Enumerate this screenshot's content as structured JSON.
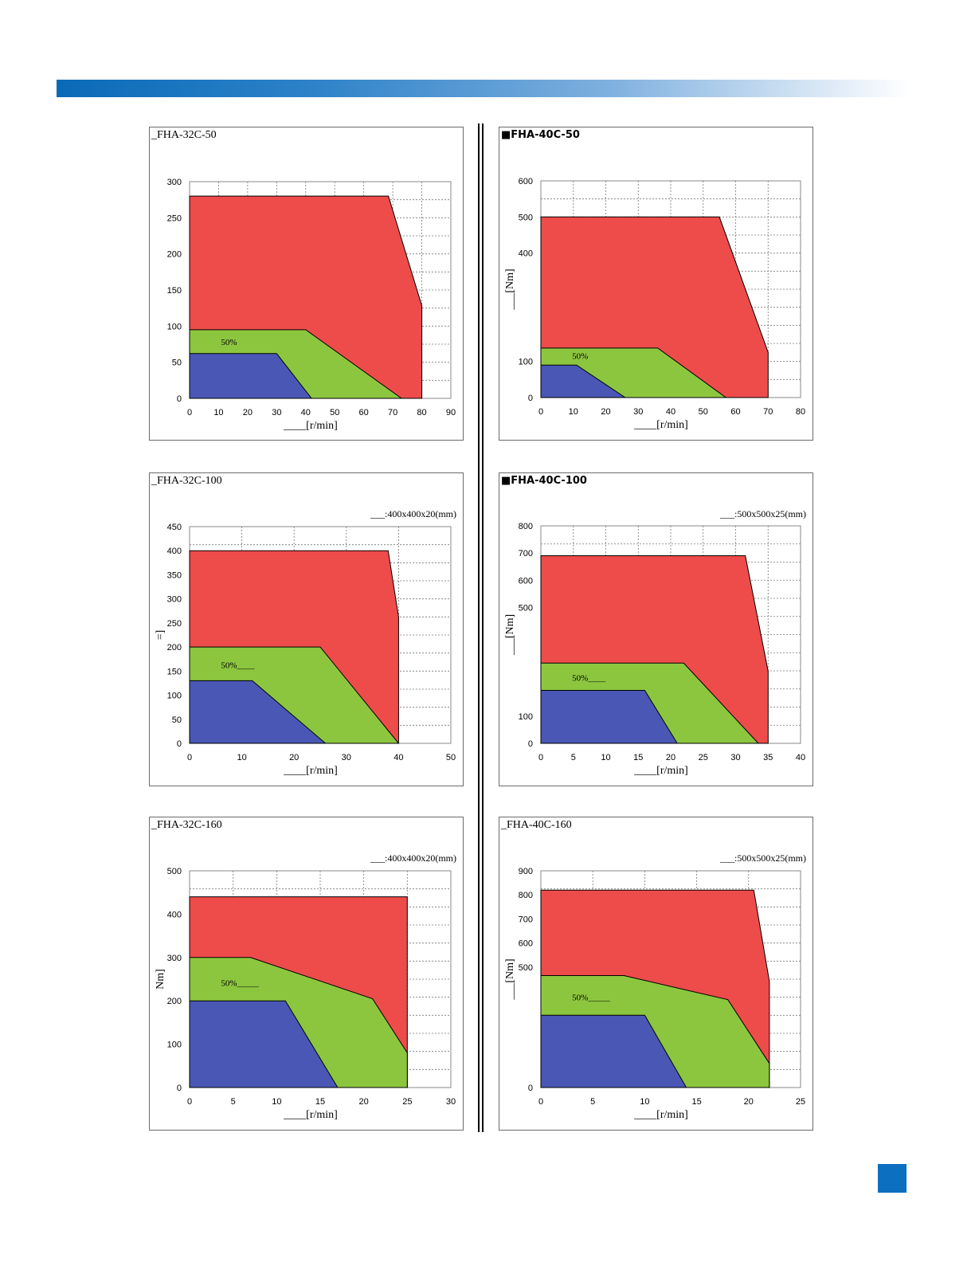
{
  "colors": {
    "banner": "#2a7cc7",
    "continuous_zone": "#4a57b5",
    "duty50_zone": "#8cc63f",
    "intermittent_zone": "#ee4b4b",
    "page_badge": "#0d6fc0"
  },
  "chart_data": [
    {
      "type": "area",
      "title": "_FHA-32C-50",
      "condition": "",
      "xlabel": "____[r/min]",
      "ylabel": "",
      "xlim": [
        0,
        90
      ],
      "ylim": [
        0,
        300
      ],
      "xticks": [
        0,
        10,
        20,
        30,
        40,
        50,
        60,
        70,
        80,
        90
      ],
      "yticks": [
        0,
        50,
        100,
        150,
        200,
        250,
        300
      ],
      "annotation": "50%",
      "grid": true,
      "series": [
        {
          "x": [
            0,
            68.5,
            80,
            80,
            0
          ],
          "y": [
            280,
            280,
            128,
            0,
            0
          ]
        },
        {
          "x": [
            0,
            40,
            73,
            0
          ],
          "y": [
            95,
            95,
            0,
            0
          ]
        },
        {
          "x": [
            0,
            30,
            42,
            0
          ],
          "y": [
            62,
            62,
            0,
            0
          ]
        }
      ]
    },
    {
      "type": "area",
      "title": "■FHA-40C-50",
      "condition": "",
      "xlabel": "____[r/min]",
      "ylabel": "___[Nm]",
      "xlim": [
        0,
        80
      ],
      "ylim": [
        0,
        600
      ],
      "xticks": [
        0,
        10,
        20,
        30,
        40,
        50,
        60,
        70,
        80
      ],
      "yticks": [
        0,
        100,
        400,
        500,
        600
      ],
      "annotation": "50%",
      "grid": true,
      "series": [
        {
          "x": [
            0,
            55,
            70,
            70,
            0
          ],
          "y": [
            500,
            500,
            125,
            0,
            0
          ]
        },
        {
          "x": [
            0,
            36,
            57,
            0
          ],
          "y": [
            137,
            137,
            0,
            0
          ]
        },
        {
          "x": [
            0,
            11,
            26,
            0
          ],
          "y": [
            90,
            90,
            0,
            0
          ]
        }
      ]
    },
    {
      "type": "area",
      "title": "_FHA-32C-100",
      "condition": "___:400x400x20(mm)",
      "xlabel": "____[r/min]",
      "ylabel": "=]",
      "xlim": [
        0,
        50
      ],
      "ylim": [
        0,
        450
      ],
      "xticks": [
        0,
        10,
        20,
        30,
        40,
        50
      ],
      "yticks": [
        0,
        50,
        100,
        150,
        200,
        250,
        300,
        350,
        400,
        450
      ],
      "annotation": "50%____",
      "grid": true,
      "series": [
        {
          "x": [
            0,
            38,
            40,
            40,
            0
          ],
          "y": [
            400,
            400,
            262,
            0,
            0
          ]
        },
        {
          "x": [
            0,
            25,
            40,
            0
          ],
          "y": [
            200,
            200,
            0,
            0
          ]
        },
        {
          "x": [
            0,
            12,
            26,
            0
          ],
          "y": [
            130,
            130,
            0,
            0
          ]
        }
      ]
    },
    {
      "type": "area",
      "title": "■FHA-40C-100",
      "condition": "___:500x500x25(mm)",
      "xlabel": "____[r/min]",
      "ylabel": "___[Nm]",
      "xlim": [
        0,
        40
      ],
      "ylim": [
        0,
        800
      ],
      "xticks": [
        0,
        5,
        10,
        15,
        20,
        25,
        30,
        35,
        40
      ],
      "yticks": [
        0,
        100,
        500,
        600,
        700,
        800
      ],
      "annotation": "50%____",
      "grid": true,
      "series": [
        {
          "x": [
            0,
            31.5,
            35,
            35,
            0
          ],
          "y": [
            690,
            690,
            265,
            0,
            0
          ]
        },
        {
          "x": [
            0,
            22,
            33.5,
            0
          ],
          "y": [
            295,
            295,
            0,
            0
          ]
        },
        {
          "x": [
            0,
            16,
            21,
            0
          ],
          "y": [
            195,
            195,
            0,
            0
          ]
        }
      ]
    },
    {
      "type": "area",
      "title": "_FHA-32C-160",
      "condition": "___:400x400x20(mm)",
      "xlabel": "____[r/min]",
      "ylabel": "Nm]",
      "xlim": [
        0,
        30
      ],
      "ylim": [
        0,
        500
      ],
      "xticks": [
        0,
        5,
        10,
        15,
        20,
        25,
        30
      ],
      "yticks": [
        0,
        100,
        200,
        300,
        400,
        500
      ],
      "annotation": "50%_____",
      "grid": true,
      "series": [
        {
          "x": [
            0,
            25,
            25,
            0
          ],
          "y": [
            440,
            440,
            0,
            0
          ]
        },
        {
          "x": [
            0,
            7,
            21,
            25,
            25,
            0
          ],
          "y": [
            300,
            300,
            205,
            80,
            0,
            0
          ]
        },
        {
          "x": [
            0,
            11,
            17,
            0
          ],
          "y": [
            200,
            200,
            0,
            0
          ]
        }
      ]
    },
    {
      "type": "area",
      "title": "_FHA-40C-160",
      "condition": "___:500x500x25(mm)",
      "xlabel": "____[r/min]",
      "ylabel": "___[Nm]",
      "xlim": [
        0,
        25
      ],
      "ylim": [
        0,
        900
      ],
      "xticks": [
        0,
        5,
        10,
        15,
        20,
        25
      ],
      "yticks": [
        0,
        500,
        600,
        700,
        800,
        900
      ],
      "annotation": "50%_____",
      "grid": true,
      "series": [
        {
          "x": [
            0,
            20.5,
            22,
            22,
            0
          ],
          "y": [
            820,
            820,
            440,
            0,
            0
          ]
        },
        {
          "x": [
            0,
            8,
            18,
            22,
            22,
            0
          ],
          "y": [
            465,
            465,
            365,
            100,
            0,
            0
          ]
        },
        {
          "x": [
            0,
            10,
            14,
            0
          ],
          "y": [
            300,
            300,
            0,
            0
          ]
        }
      ]
    }
  ]
}
